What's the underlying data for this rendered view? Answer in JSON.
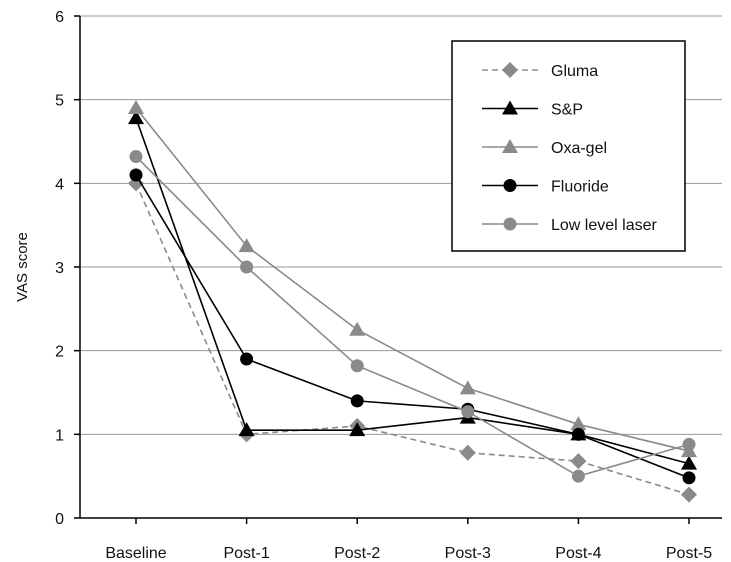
{
  "chart_data": {
    "type": "line",
    "title": "",
    "xlabel": "",
    "ylabel": "VAS score",
    "ylim": [
      0,
      6
    ],
    "yticks": [
      0,
      1,
      2,
      3,
      4,
      5,
      6
    ],
    "grid": "horizontal",
    "legend_position": "top-right",
    "categories": [
      "Baseline",
      "Post-1",
      "Post-2",
      "Post-3",
      "Post-4",
      "Post-5"
    ],
    "series": [
      {
        "name": "Gluma",
        "values": [
          4.0,
          1.0,
          1.1,
          0.78,
          0.68,
          0.28
        ],
        "color": "#8a8a8a",
        "marker": "diamond",
        "dashed": true
      },
      {
        "name": "S&P",
        "values": [
          4.78,
          1.05,
          1.05,
          1.2,
          1.0,
          0.65
        ],
        "color": "#000000",
        "marker": "triangle",
        "dashed": false
      },
      {
        "name": "Oxa-gel",
        "values": [
          4.9,
          3.25,
          2.25,
          1.55,
          1.12,
          0.8
        ],
        "color": "#8a8a8a",
        "marker": "triangle",
        "dashed": false
      },
      {
        "name": "Fluoride",
        "values": [
          4.1,
          1.9,
          1.4,
          1.3,
          1.0,
          0.48
        ],
        "color": "#000000",
        "marker": "circle",
        "dashed": false
      },
      {
        "name": "Low level laser",
        "values": [
          4.32,
          3.0,
          1.82,
          1.27,
          0.5,
          0.88
        ],
        "color": "#8a8a8a",
        "marker": "circle",
        "dashed": false
      }
    ]
  }
}
